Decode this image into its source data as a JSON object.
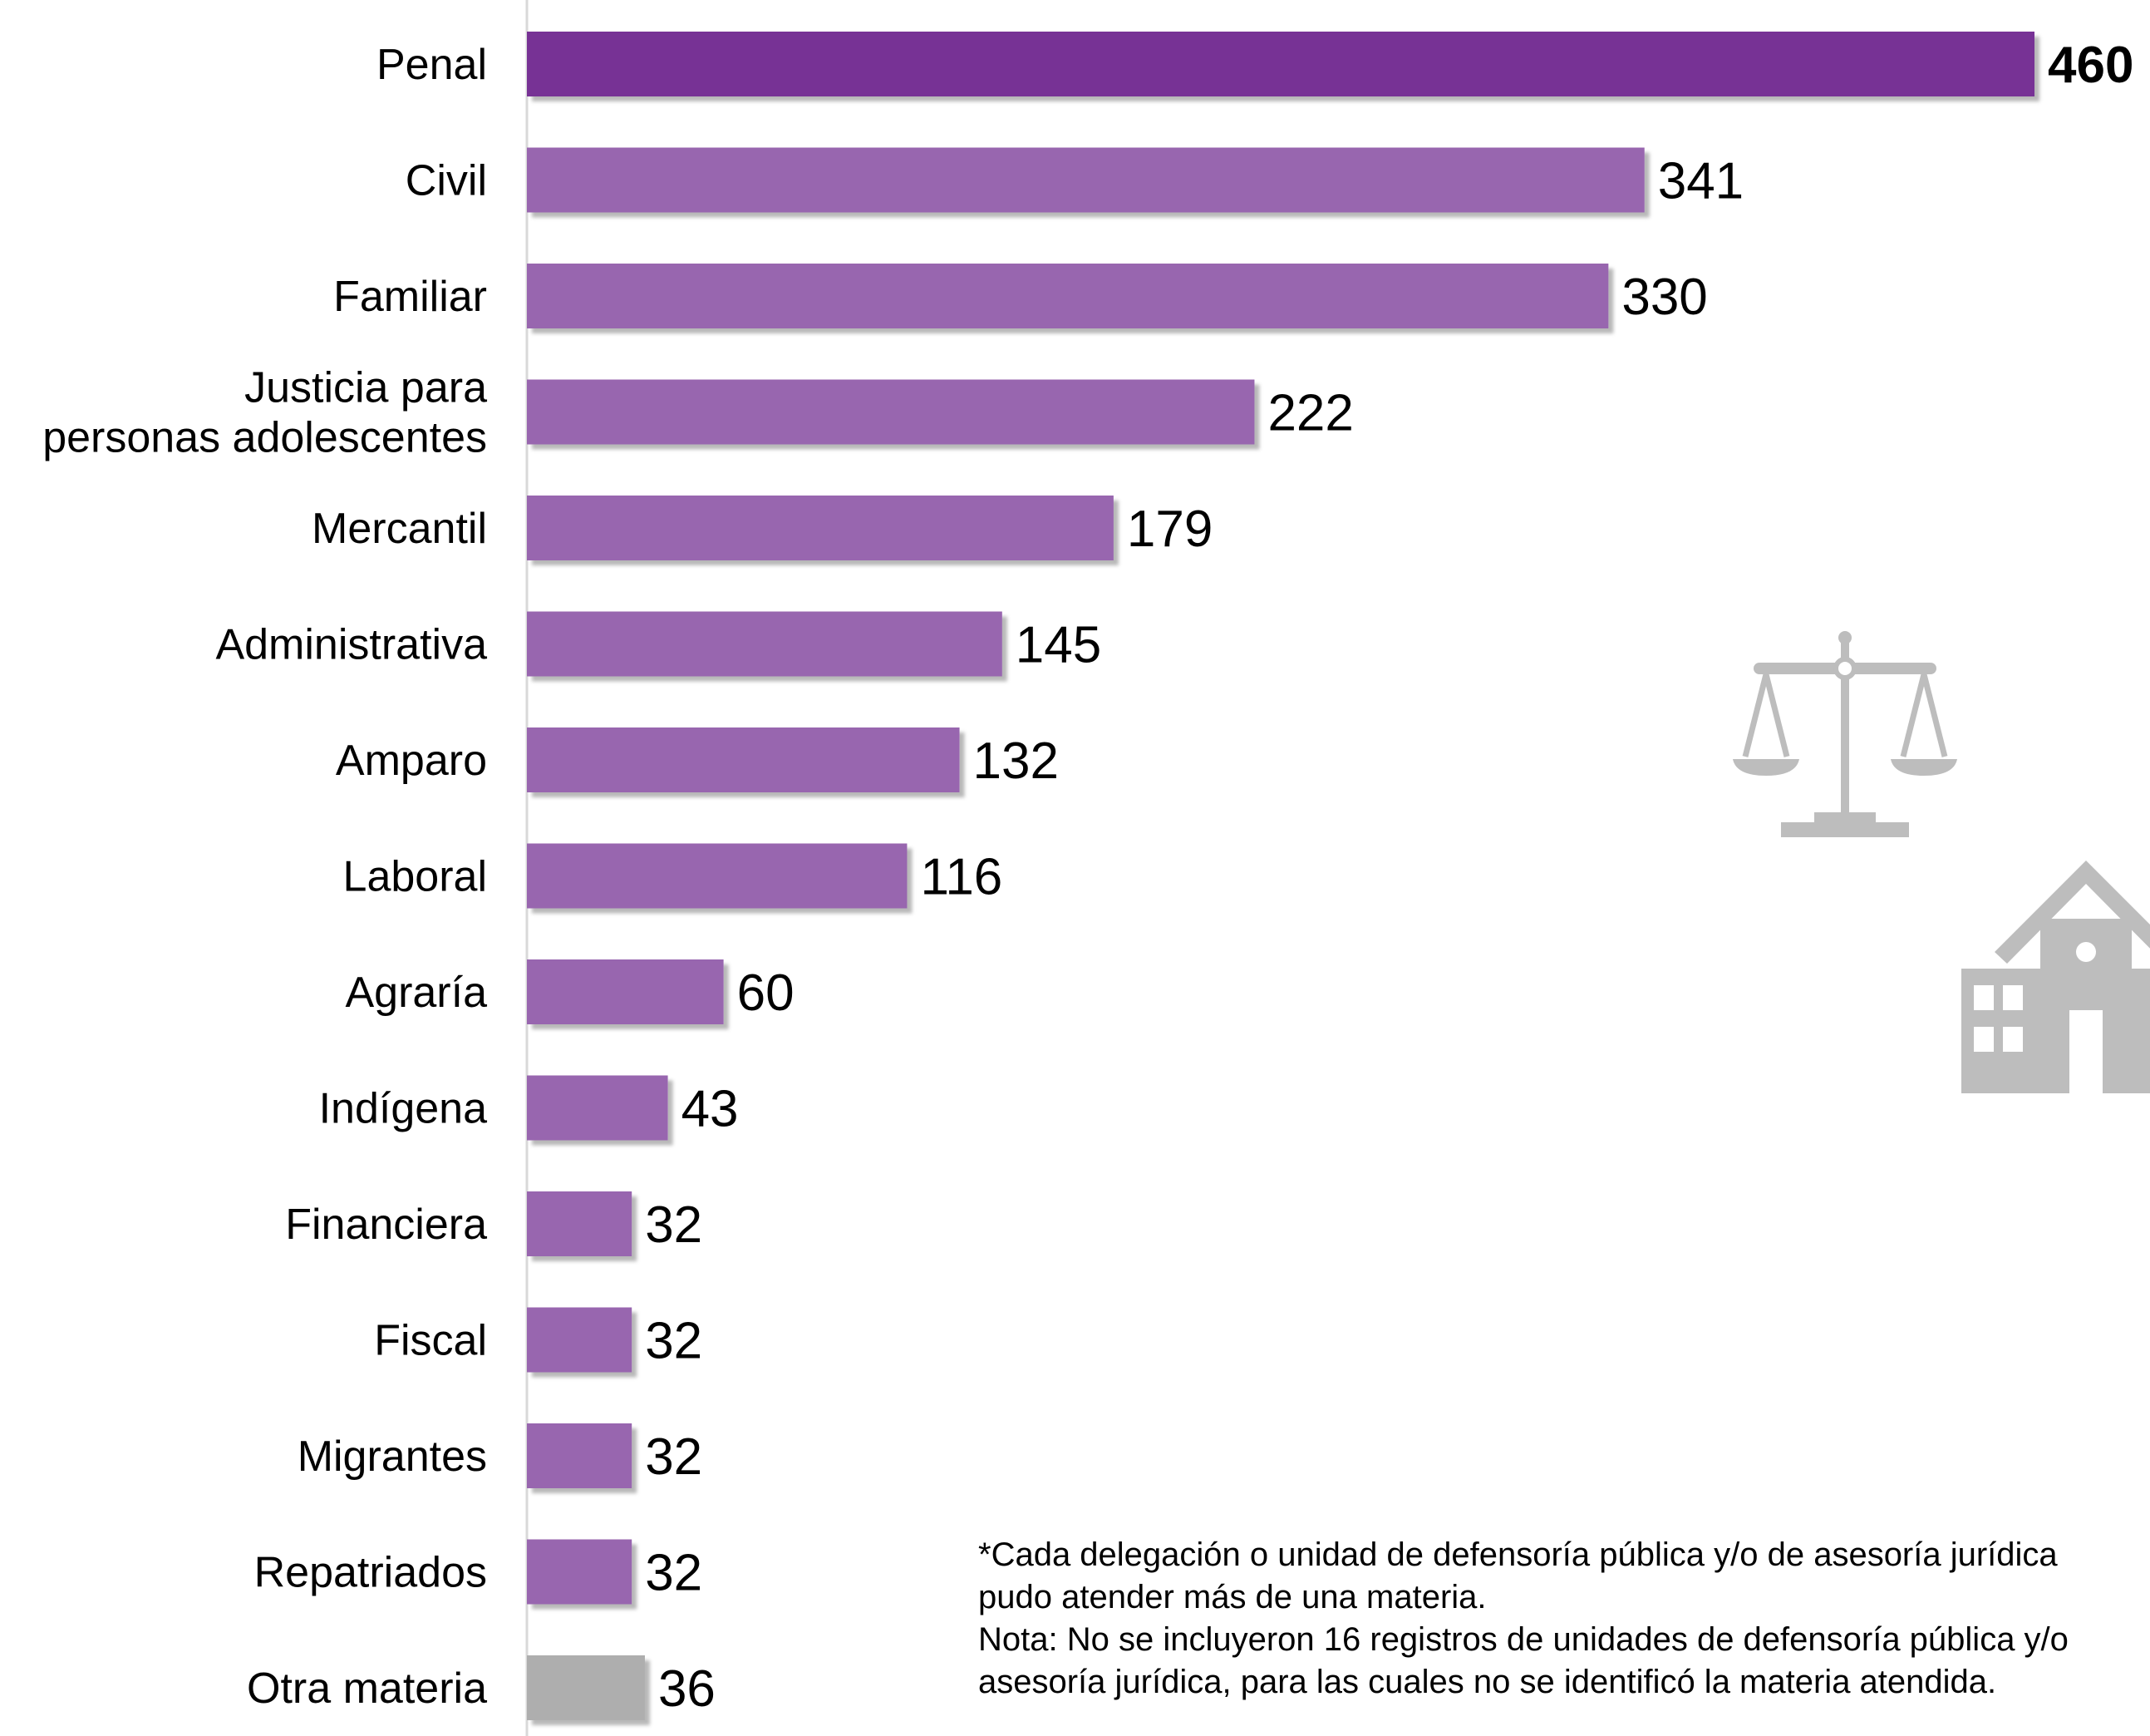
{
  "chart_data": {
    "type": "bar",
    "orientation": "horizontal",
    "categories": [
      "Penal",
      "Civil",
      "Familiar",
      "Justicia para personas adolescentes",
      "Mercantil",
      "Administrativa",
      "Amparo",
      "Laboral",
      "Agraría",
      "Indígena",
      "Financiera",
      "Fiscal",
      "Migrantes",
      "Repatriados",
      "Otra materia"
    ],
    "category_lines": [
      [
        "Penal"
      ],
      [
        "Civil"
      ],
      [
        "Familiar"
      ],
      [
        "Justicia para",
        "personas adolescentes"
      ],
      [
        "Mercantil"
      ],
      [
        "Administrativa"
      ],
      [
        "Amparo"
      ],
      [
        "Laboral"
      ],
      [
        "Agraría"
      ],
      [
        "Indígena"
      ],
      [
        "Financiera"
      ],
      [
        "Fiscal"
      ],
      [
        "Migrantes"
      ],
      [
        "Repatriados"
      ],
      [
        "Otra materia"
      ]
    ],
    "values": [
      460,
      341,
      330,
      222,
      179,
      145,
      132,
      116,
      60,
      43,
      32,
      32,
      32,
      32,
      36
    ],
    "bar_colors": [
      "#773395",
      "#9866AF",
      "#9866AF",
      "#9866AF",
      "#9866AF",
      "#9866AF",
      "#9866AF",
      "#9866AF",
      "#9866AF",
      "#9866AF",
      "#9866AF",
      "#9866AF",
      "#9866AF",
      "#9866AF",
      "#AEAEAE"
    ],
    "bold_value_labels": [
      true,
      false,
      false,
      false,
      false,
      false,
      false,
      false,
      false,
      false,
      false,
      false,
      false,
      false,
      false
    ],
    "xlim": [
      0,
      460
    ],
    "grid": false,
    "title": "",
    "xlabel": "",
    "ylabel": ""
  },
  "notes": {
    "line1": "*Cada delegación o unidad de defensoría pública y/o de asesoría jurídica",
    "line2": "pudo atender más de una materia.",
    "line3": "Nota: No se incluyeron 16 registros de unidades de defensoría pública y/o",
    "line4": "asesoría jurídica, para las cuales no se identificó la materia atendida."
  },
  "icons": {
    "scale": "scales-of-justice-icon",
    "building": "courthouse-icon",
    "icon_color": "#BDBDBD"
  }
}
